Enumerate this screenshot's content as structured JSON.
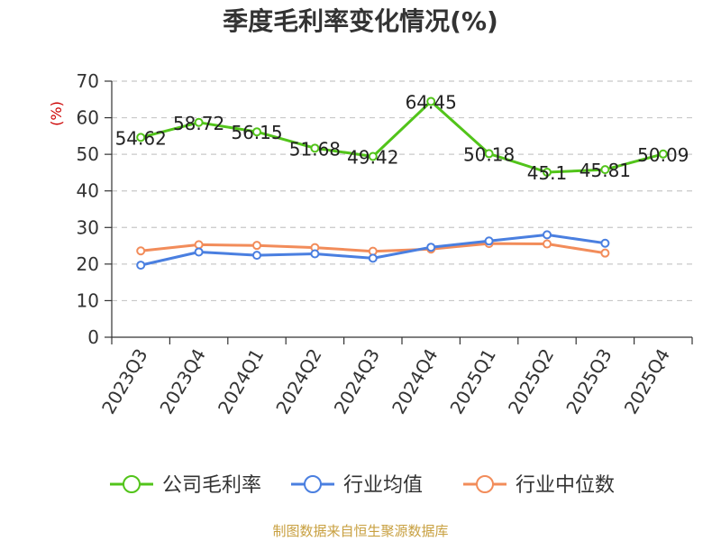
{
  "chart_data": {
    "type": "line",
    "title": "季度毛利率变化情况(%)",
    "ylabel": "(%)",
    "xlabel": "",
    "ylim": [
      0,
      70
    ],
    "yticks": [
      0,
      10,
      20,
      30,
      40,
      50,
      60,
      70
    ],
    "grid": true,
    "legend_position": "bottom",
    "categories": [
      "2023Q3",
      "2023Q4",
      "2024Q1",
      "2024Q2",
      "2024Q3",
      "2024Q4",
      "2025Q1",
      "2025Q2",
      "2025Q3",
      "2025Q4"
    ],
    "series": [
      {
        "name": "公司毛利率",
        "color": "#52c41a",
        "values": [
          54.62,
          58.72,
          56.15,
          51.68,
          49.42,
          64.45,
          50.18,
          45.1,
          45.81,
          50.09
        ],
        "labels": [
          "54.62",
          "58.72",
          "56.15",
          "51.68",
          "49.42",
          "64.45",
          "50.18",
          "45.1",
          "45.81",
          "50.09"
        ]
      },
      {
        "name": "行业均值",
        "color": "#4a7fe0",
        "values": [
          19.7,
          23.3,
          22.4,
          22.8,
          21.6,
          24.6,
          26.3,
          28.0,
          25.7,
          null
        ]
      },
      {
        "name": "行业中位数",
        "color": "#f28c5a",
        "values": [
          23.6,
          25.3,
          25.1,
          24.5,
          23.5,
          24.1,
          25.6,
          25.5,
          23.0,
          null
        ]
      }
    ]
  },
  "footer": {
    "source": "制图数据来自恒生聚源数据库"
  }
}
